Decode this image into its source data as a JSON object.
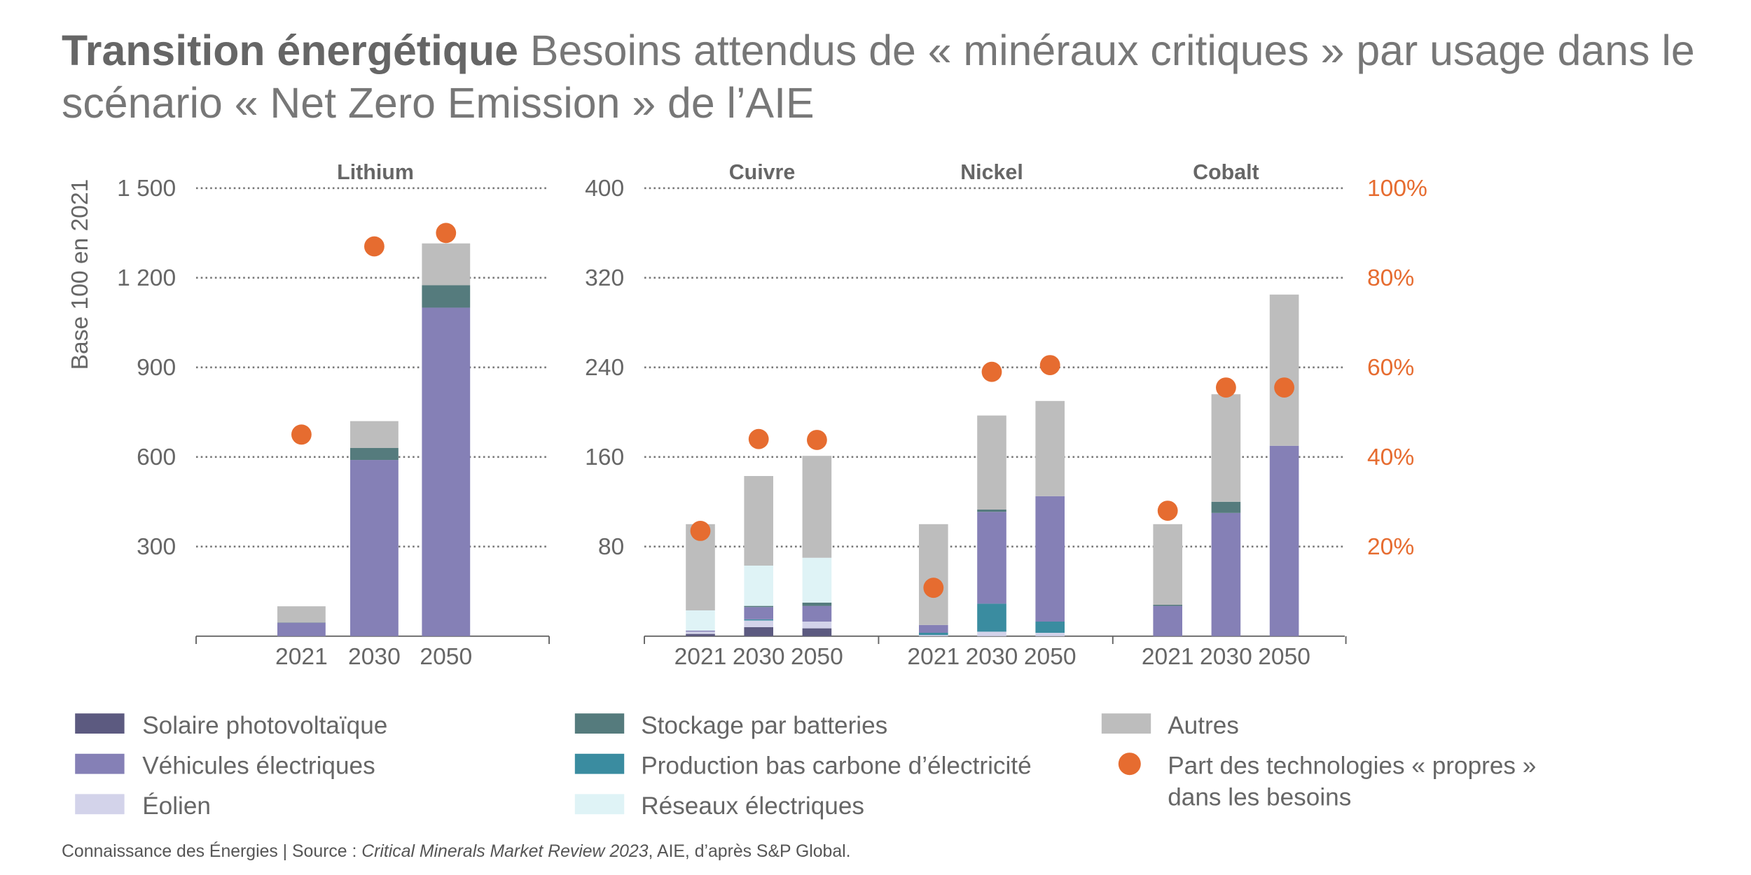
{
  "title": {
    "bold": "Transition énergétique",
    "line1": " Besoins attendus de « minéraux critiques » par usage dans le",
    "line2": "scénario « Net Zero Emission » de l’AIE"
  },
  "source": {
    "prefix": "Connaissance des Énergies | Source : ",
    "italic": "Critical Minerals Market Review 2023",
    "suffix": ", AIE, d’après S&P Global."
  },
  "chart_data": {
    "type": "bar",
    "stacked": true,
    "ylabel": "Base 100 en 2021",
    "colors": {
      "solaire": "#5c5a80",
      "ev": "#8580b6",
      "eolien": "#d3d3ea",
      "batteries": "#557b7d",
      "production": "#3a8ca0",
      "reseaux": "#dff3f6",
      "autres": "#bdbdbd",
      "dot": "#e66c30"
    },
    "legend": [
      {
        "key": "solaire",
        "label": "Solaire photovoltaïque"
      },
      {
        "key": "ev",
        "label": "Véhicules électriques"
      },
      {
        "key": "eolien",
        "label": "Éolien"
      },
      {
        "key": "batteries",
        "label": "Stockage par batteries"
      },
      {
        "key": "production",
        "label": "Production bas carbone d’électricité"
      },
      {
        "key": "reseaux",
        "label": "Réseaux électriques"
      },
      {
        "key": "autres",
        "label": "Autres"
      },
      {
        "key": "dot",
        "label": "Part des technologies « propres »",
        "label2": "dans les besoins"
      }
    ],
    "stack_order": [
      "solaire",
      "eolien",
      "production",
      "ev",
      "batteries",
      "reseaux",
      "autres"
    ],
    "charts": [
      {
        "yticks": [
          "1 500",
          "1 200",
          "900",
          "600",
          "300"
        ],
        "ylim": [
          0,
          1500
        ],
        "grid": true,
        "share_axis_max_percent": 100,
        "panels": [
          {
            "title": "Lithium",
            "categories": [
              "2021",
              "2030",
              "2050"
            ],
            "values": {
              "solaire": [
                0,
                0,
                0
              ],
              "eolien": [
                0,
                0,
                0
              ],
              "production": [
                0,
                0,
                0
              ],
              "ev": [
                45,
                590,
                1100
              ],
              "batteries": [
                1,
                40,
                75
              ],
              "reseaux": [
                0,
                0,
                0
              ],
              "autres": [
                54,
                90,
                140
              ]
            },
            "share_percent": [
              45,
              87,
              90
            ]
          }
        ]
      },
      {
        "yticks": [
          "400",
          "320",
          "240",
          "160",
          "80"
        ],
        "yticks_right": [
          "100%",
          "80%",
          "60%",
          "40%",
          "20%"
        ],
        "ylim": [
          0,
          400
        ],
        "ylim_right": [
          0,
          100
        ],
        "grid": true,
        "panels": [
          {
            "title": "Cuivre",
            "categories": [
              "2021",
              "2030",
              "2050"
            ],
            "values": {
              "solaire": [
                2,
                8,
                7
              ],
              "eolien": [
                2,
                6,
                6
              ],
              "production": [
                0,
                1,
                0
              ],
              "ev": [
                1,
                11,
                14
              ],
              "batteries": [
                0,
                1,
                3
              ],
              "reseaux": [
                18,
                36,
                40
              ],
              "autres": [
                77,
                80,
                91
              ]
            },
            "share_percent": [
              23.5,
              44,
              43.8
            ]
          },
          {
            "title": "Nickel",
            "categories": [
              "2021",
              "2030",
              "2050"
            ],
            "values": {
              "solaire": [
                0,
                0,
                0
              ],
              "eolien": [
                1,
                4,
                3
              ],
              "production": [
                2,
                25,
                10
              ],
              "ev": [
                7,
                82,
                112
              ],
              "batteries": [
                0,
                2,
                0
              ],
              "reseaux": [
                0,
                0,
                0
              ],
              "autres": [
                90,
                84,
                85
              ]
            },
            "share_percent": [
              10.8,
              59,
              60.5
            ]
          },
          {
            "title": "Cobalt",
            "categories": [
              "2021",
              "2030",
              "2050"
            ],
            "values": {
              "solaire": [
                0,
                0,
                0
              ],
              "eolien": [
                0,
                0,
                0
              ],
              "production": [
                0,
                0,
                0
              ],
              "ev": [
                27,
                110,
                170
              ],
              "batteries": [
                1,
                10,
                0
              ],
              "reseaux": [
                0,
                0,
                0
              ],
              "autres": [
                72,
                96,
                135
              ]
            },
            "share_percent": [
              28,
              55.5,
              55.5
            ]
          }
        ]
      }
    ]
  }
}
